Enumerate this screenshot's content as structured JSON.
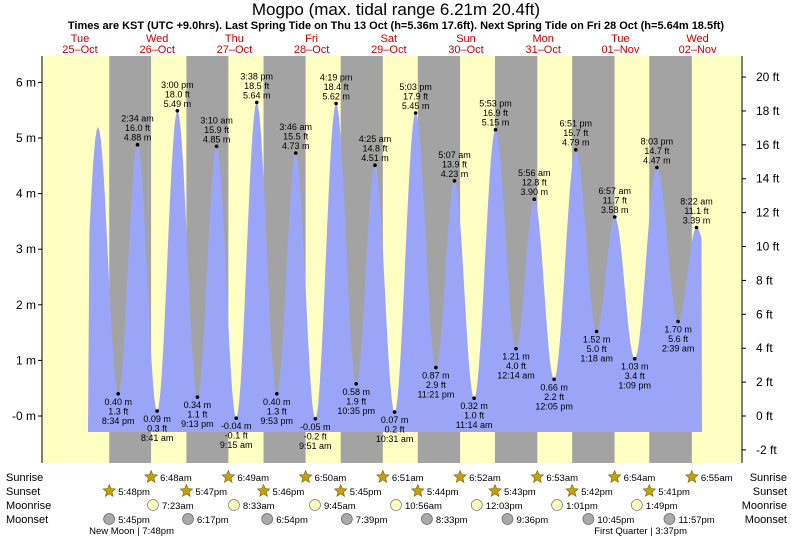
{
  "chart_data": {
    "type": "area",
    "title": "Mogpo (max. tidal range 6.21m 20.4ft)",
    "subtitle": "Times are KST (UTC +9.0hrs). Last Spring Tide on Thu 13 Oct (h=5.36m 17.6ft). Next Spring Tide on Fri 28 Oct (h=5.64m 18.5ft)",
    "ylim_m": [
      -0.55,
      6.45
    ],
    "y_ticks_m": [
      "-0 m",
      "1 m",
      "2 m",
      "3 m",
      "4 m",
      "5 m",
      "6 m"
    ],
    "y_ticks_ft": [
      "-2 ft",
      "0 ft",
      "2 ft",
      "4 ft",
      "6 ft",
      "8 ft",
      "10 ft",
      "12 ft",
      "14 ft",
      "16 ft",
      "18 ft",
      "20 ft"
    ],
    "days": [
      {
        "dow": "Tue",
        "date": "25–Oct"
      },
      {
        "dow": "Wed",
        "date": "26–Oct"
      },
      {
        "dow": "Thu",
        "date": "27–Oct"
      },
      {
        "dow": "Fri",
        "date": "28–Oct"
      },
      {
        "dow": "Sat",
        "date": "29–Oct"
      },
      {
        "dow": "Sun",
        "date": "30–Oct"
      },
      {
        "dow": "Mon",
        "date": "31–Oct"
      },
      {
        "dow": "Tue",
        "date": "01–Nov"
      },
      {
        "dow": "Wed",
        "date": "02–Nov"
      }
    ],
    "tides": [
      {
        "type": "high",
        "day": 0,
        "time": "",
        "h_m": 5.2,
        "label": []
      },
      {
        "type": "low",
        "day": 0,
        "time": "8:34 pm",
        "h_m": 0.4,
        "label": [
          "0.40 m",
          "1.3 ft",
          "8:34 pm"
        ]
      },
      {
        "type": "high",
        "day": 1,
        "time": "2:34 am",
        "h_m": 4.88,
        "label": [
          "2:34 am",
          "16.0 ft",
          "4.88 m"
        ]
      },
      {
        "type": "low",
        "day": 1,
        "time": "8:41 am",
        "h_m": 0.09,
        "label": [
          "0.09 m",
          "0.3 ft",
          "8:41 am"
        ]
      },
      {
        "type": "high",
        "day": 1,
        "time": "3:00 pm",
        "h_m": 5.49,
        "label": [
          "3:00 pm",
          "18.0 ft",
          "5.49 m"
        ]
      },
      {
        "type": "low",
        "day": 1,
        "time": "9:13 pm",
        "h_m": 0.34,
        "label": [
          "0.34 m",
          "1.1 ft",
          "9:13 pm"
        ]
      },
      {
        "type": "high",
        "day": 2,
        "time": "3:10 am",
        "h_m": 4.85,
        "label": [
          "3:10 am",
          "15.9 ft",
          "4.85 m"
        ]
      },
      {
        "type": "low",
        "day": 2,
        "time": "9:15 am",
        "h_m": -0.04,
        "label": [
          "-0.04 m",
          "-0.1 ft",
          "9:15 am"
        ]
      },
      {
        "type": "high",
        "day": 2,
        "time": "3:38 pm",
        "h_m": 5.64,
        "label": [
          "3:38 pm",
          "18.5 ft",
          "5.64 m"
        ]
      },
      {
        "type": "low",
        "day": 2,
        "time": "9:53 pm",
        "h_m": 0.4,
        "label": [
          "0.40 m",
          "1.3 ft",
          "9:53 pm"
        ]
      },
      {
        "type": "high",
        "day": 3,
        "time": "3:46 am",
        "h_m": 4.73,
        "label": [
          "3:46 am",
          "15.5 ft",
          "4.73 m"
        ]
      },
      {
        "type": "low",
        "day": 3,
        "time": "9:51 am",
        "h_m": -0.05,
        "label": [
          "-0.05 m",
          "-0.2 ft",
          "9:51 am"
        ]
      },
      {
        "type": "high",
        "day": 3,
        "time": "4:19 pm",
        "h_m": 5.62,
        "label": [
          "4:19 pm",
          "18.4 ft",
          "5.62 m"
        ]
      },
      {
        "type": "low",
        "day": 3,
        "time": "10:35 pm",
        "h_m": 0.58,
        "label": [
          "0.58 m",
          "1.9 ft",
          "10:35 pm"
        ]
      },
      {
        "type": "high",
        "day": 4,
        "time": "4:25 am",
        "h_m": 4.51,
        "label": [
          "4:25 am",
          "14.8 ft",
          "4.51 m"
        ]
      },
      {
        "type": "low",
        "day": 4,
        "time": "10:31 am",
        "h_m": 0.07,
        "label": [
          "0.07 m",
          "0.2 ft",
          "10:31 am"
        ]
      },
      {
        "type": "high",
        "day": 4,
        "time": "5:03 pm",
        "h_m": 5.45,
        "label": [
          "5:03 pm",
          "17.9 ft",
          "5.45 m"
        ]
      },
      {
        "type": "low",
        "day": 4,
        "time": "11:21 pm",
        "h_m": 0.87,
        "label": [
          "0.87 m",
          "2.9 ft",
          "11:21 pm"
        ]
      },
      {
        "type": "high",
        "day": 5,
        "time": "5:07 am",
        "h_m": 4.23,
        "label": [
          "5:07 am",
          "13.9 ft",
          "4.23 m"
        ]
      },
      {
        "type": "low",
        "day": 5,
        "time": "11:14 am",
        "h_m": 0.32,
        "label": [
          "0.32 m",
          "1.0 ft",
          "11:14 am"
        ]
      },
      {
        "type": "high",
        "day": 5,
        "time": "5:53 pm",
        "h_m": 5.15,
        "label": [
          "5:53 pm",
          "16.9 ft",
          "5.15 m"
        ]
      },
      {
        "type": "low",
        "day": 6,
        "time": "12:14 am",
        "h_m": 1.21,
        "label": [
          "1.21 m",
          "4.0 ft",
          "12:14 am"
        ]
      },
      {
        "type": "high",
        "day": 6,
        "time": "5:56 am",
        "h_m": 3.9,
        "label": [
          "5:56 am",
          "12.8 ft",
          "3.90 m"
        ]
      },
      {
        "type": "low",
        "day": 6,
        "time": "12:05 pm",
        "h_m": 0.66,
        "label": [
          "0.66 m",
          "2.2 ft",
          "12:05 pm"
        ]
      },
      {
        "type": "high",
        "day": 6,
        "time": "6:51 pm",
        "h_m": 4.79,
        "label": [
          "6:51 pm",
          "15.7 ft",
          "4.79 m"
        ]
      },
      {
        "type": "low",
        "day": 7,
        "time": "1:18 am",
        "h_m": 1.52,
        "label": [
          "1.52 m",
          "5.0 ft",
          "1:18 am"
        ]
      },
      {
        "type": "high",
        "day": 7,
        "time": "6:57 am",
        "h_m": 3.58,
        "label": [
          "6:57 am",
          "11.7 ft",
          "3.58 m"
        ]
      },
      {
        "type": "low",
        "day": 7,
        "time": "1:09 pm",
        "h_m": 1.03,
        "label": [
          "1.03 m",
          "3.4 ft",
          "1:09 pm"
        ]
      },
      {
        "type": "high",
        "day": 7,
        "time": "8:03 pm",
        "h_m": 4.47,
        "label": [
          "8:03 pm",
          "14.7 ft",
          "4.47 m"
        ]
      },
      {
        "type": "low",
        "day": 8,
        "time": "2:39 am",
        "h_m": 1.7,
        "label": [
          "1.70 m",
          "5.6 ft",
          "2:39 am"
        ]
      },
      {
        "type": "high",
        "day": 8,
        "time": "8:22 am",
        "h_m": 3.39,
        "label": [
          "8:22 am",
          "11.1 ft",
          "3.39 m"
        ]
      }
    ],
    "sunrise": [
      {
        "day": 1,
        "time": "6:48am"
      },
      {
        "day": 2,
        "time": "6:49am"
      },
      {
        "day": 3,
        "time": "6:50am"
      },
      {
        "day": 4,
        "time": "6:51am"
      },
      {
        "day": 5,
        "time": "6:52am"
      },
      {
        "day": 6,
        "time": "6:53am"
      },
      {
        "day": 7,
        "time": "6:54am"
      },
      {
        "day": 8,
        "time": "6:55am"
      }
    ],
    "sunset": [
      {
        "day": 0,
        "time": "5:48pm"
      },
      {
        "day": 1,
        "time": "5:47pm"
      },
      {
        "day": 2,
        "time": "5:46pm"
      },
      {
        "day": 3,
        "time": "5:45pm"
      },
      {
        "day": 4,
        "time": "5:44pm"
      },
      {
        "day": 5,
        "time": "5:43pm"
      },
      {
        "day": 6,
        "time": "5:42pm"
      },
      {
        "day": 7,
        "time": "5:41pm"
      }
    ],
    "moonrise": [
      {
        "day": 1,
        "time": "7:23am"
      },
      {
        "day": 2,
        "time": "8:33am"
      },
      {
        "day": 3,
        "time": "9:45am"
      },
      {
        "day": 4,
        "time": "10:56am"
      },
      {
        "day": 5,
        "time": "12:03pm"
      },
      {
        "day": 6,
        "time": "1:01pm"
      },
      {
        "day": 7,
        "time": "1:49pm"
      }
    ],
    "moonset": [
      {
        "day": 0,
        "time": "5:45pm"
      },
      {
        "day": 1,
        "time": "6:17pm"
      },
      {
        "day": 2,
        "time": "6:54pm"
      },
      {
        "day": 3,
        "time": "7:39pm"
      },
      {
        "day": 4,
        "time": "8:33pm"
      },
      {
        "day": 5,
        "time": "9:36pm"
      },
      {
        "day": 6,
        "time": "10:45pm"
      },
      {
        "day": 7,
        "time": "11:57pm"
      }
    ],
    "row_labels": {
      "sunrise": "Sunrise",
      "sunset": "Sunset",
      "moonrise": "Moonrise",
      "moonset": "Moonset"
    },
    "moon_phases": [
      {
        "label": "New Moon | 7:48pm"
      },
      {
        "label": "First Quarter | 3:37pm"
      }
    ],
    "colors": {
      "tide": "#9aa5f8",
      "day_bg": "#ffffc4",
      "night_bg": "#a3a3a3",
      "day_text": "#cc0000",
      "star": "#c8a000",
      "moon_rise": "#fdfbbf",
      "moon_set": "#a9a9a9"
    }
  }
}
